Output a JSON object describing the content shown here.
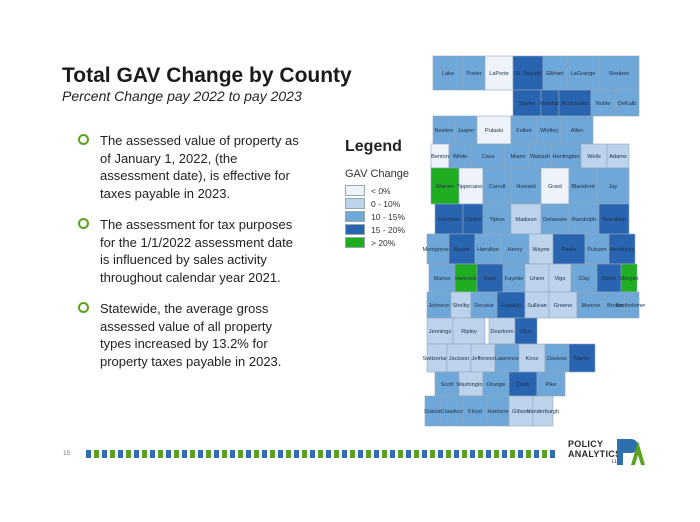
{
  "slide": {
    "title": "Total GAV Change by County",
    "subtitle": "Percent Change pay 2022 to pay 2023",
    "page_number": "15"
  },
  "bullets": [
    "The assessed value of property as of January 1, 2022, (the assessment date), is effective for taxes payable in 2023.",
    "The assessment for tax purposes for the 1/1/2022 assessment date is influenced by sales activity throughout calendar year 2021.",
    "Statewide, the average gross assessed value of all property types increased by 13.2% for property taxes payable in 2023."
  ],
  "legend": {
    "title": "Legend",
    "subtitle": "GAV Change",
    "items": [
      {
        "label": "< 0%",
        "color": "#eef3fb"
      },
      {
        "label": "0 - 10%",
        "color": "#bdd3ec"
      },
      {
        "label": "10 - 15%",
        "color": "#6fa7d8"
      },
      {
        "label": "15 - 20%",
        "color": "#2864b0"
      },
      {
        "label": "> 20%",
        "color": "#1fae22"
      }
    ]
  },
  "map": {
    "counties": [
      {
        "name": "Lake",
        "cls": "c"
      },
      {
        "name": "Porter",
        "cls": "c"
      },
      {
        "name": "LaPorte",
        "cls": "a"
      },
      {
        "name": "St. Joseph",
        "cls": "d"
      },
      {
        "name": "Elkhart",
        "cls": "c"
      },
      {
        "name": "LaGrange",
        "cls": "c"
      },
      {
        "name": "Steuben",
        "cls": "c"
      },
      {
        "name": "Starke",
        "cls": "d"
      },
      {
        "name": "Marshall",
        "cls": "d"
      },
      {
        "name": "Kosciusko",
        "cls": "d"
      },
      {
        "name": "Noble",
        "cls": "c"
      },
      {
        "name": "DeKalb",
        "cls": "c"
      },
      {
        "name": "Newton",
        "cls": "c"
      },
      {
        "name": "Jasper",
        "cls": "c"
      },
      {
        "name": "Pulaski",
        "cls": "a"
      },
      {
        "name": "Fulton",
        "cls": "c"
      },
      {
        "name": "Whitley",
        "cls": "c"
      },
      {
        "name": "Allen",
        "cls": "c"
      },
      {
        "name": "Benton",
        "cls": "a"
      },
      {
        "name": "White",
        "cls": "c"
      },
      {
        "name": "Cass",
        "cls": "c"
      },
      {
        "name": "Miami",
        "cls": "c"
      },
      {
        "name": "Wabash",
        "cls": "c"
      },
      {
        "name": "Huntington",
        "cls": "c"
      },
      {
        "name": "Wells",
        "cls": "b"
      },
      {
        "name": "Adams",
        "cls": "b"
      },
      {
        "name": "Warren",
        "cls": "e"
      },
      {
        "name": "Tippecanoe",
        "cls": "a"
      },
      {
        "name": "Carroll",
        "cls": "c"
      },
      {
        "name": "Howard",
        "cls": "c"
      },
      {
        "name": "Grant",
        "cls": "a"
      },
      {
        "name": "Blackford",
        "cls": "c"
      },
      {
        "name": "Jay",
        "cls": "c"
      },
      {
        "name": "Fountain",
        "cls": "d"
      },
      {
        "name": "Clinton",
        "cls": "d"
      },
      {
        "name": "Tipton",
        "cls": "c"
      },
      {
        "name": "Madison",
        "cls": "b"
      },
      {
        "name": "Delaware",
        "cls": "c"
      },
      {
        "name": "Randolph",
        "cls": "c"
      },
      {
        "name": "Vermillion",
        "cls": "d"
      },
      {
        "name": "Montgomery",
        "cls": "c"
      },
      {
        "name": "Boone",
        "cls": "d"
      },
      {
        "name": "Hamilton",
        "cls": "c"
      },
      {
        "name": "Henry",
        "cls": "c"
      },
      {
        "name": "Wayne",
        "cls": "b"
      },
      {
        "name": "Parke",
        "cls": "d"
      },
      {
        "name": "Putnam",
        "cls": "c"
      },
      {
        "name": "Hendricks",
        "cls": "d"
      },
      {
        "name": "Marion",
        "cls": "c"
      },
      {
        "name": "Hancock",
        "cls": "e"
      },
      {
        "name": "Rush",
        "cls": "d"
      },
      {
        "name": "Fayette",
        "cls": "c"
      },
      {
        "name": "Union",
        "cls": "b"
      },
      {
        "name": "Vigo",
        "cls": "b"
      },
      {
        "name": "Clay",
        "cls": "c"
      },
      {
        "name": "Owen",
        "cls": "d"
      },
      {
        "name": "Morgan",
        "cls": "e"
      },
      {
        "name": "Johnson",
        "cls": "c"
      },
      {
        "name": "Shelby",
        "cls": "b"
      },
      {
        "name": "Decatur",
        "cls": "c"
      },
      {
        "name": "Franklin",
        "cls": "d"
      },
      {
        "name": "Sullivan",
        "cls": "b"
      },
      {
        "name": "Greene",
        "cls": "b"
      },
      {
        "name": "Monroe",
        "cls": "c"
      },
      {
        "name": "Brown",
        "cls": "c"
      },
      {
        "name": "Bartholomew",
        "cls": "c"
      },
      {
        "name": "Jennings",
        "cls": "b"
      },
      {
        "name": "Ripley",
        "cls": "b"
      },
      {
        "name": "Dearborn",
        "cls": "b"
      },
      {
        "name": "Ohio",
        "cls": "d"
      },
      {
        "name": "Switzerland",
        "cls": "b"
      },
      {
        "name": "Jackson",
        "cls": "b"
      },
      {
        "name": "Jefferson",
        "cls": "b"
      },
      {
        "name": "Lawrence",
        "cls": "c"
      },
      {
        "name": "Knox",
        "cls": "b"
      },
      {
        "name": "Daviess",
        "cls": "c"
      },
      {
        "name": "Martin",
        "cls": "d"
      },
      {
        "name": "Scott",
        "cls": "c"
      },
      {
        "name": "Washington",
        "cls": "b"
      },
      {
        "name": "Orange",
        "cls": "c"
      },
      {
        "name": "Clark",
        "cls": "d"
      },
      {
        "name": "Pike",
        "cls": "c"
      },
      {
        "name": "Dubois",
        "cls": "c"
      },
      {
        "name": "Crawford",
        "cls": "c"
      },
      {
        "name": "Floyd",
        "cls": "c"
      },
      {
        "name": "Harrison",
        "cls": "c"
      },
      {
        "name": "Gibson",
        "cls": "b"
      },
      {
        "name": "Vanderburgh",
        "cls": "b"
      },
      {
        "name": "Warrick",
        "cls": "e"
      },
      {
        "name": "Spencer",
        "cls": "c"
      },
      {
        "name": "Perry",
        "cls": "c"
      },
      {
        "name": "Posey",
        "cls": "b"
      }
    ]
  },
  "logo": {
    "line1": "POLICY",
    "line2": "ANALYTICS",
    "line3": "LLC"
  }
}
